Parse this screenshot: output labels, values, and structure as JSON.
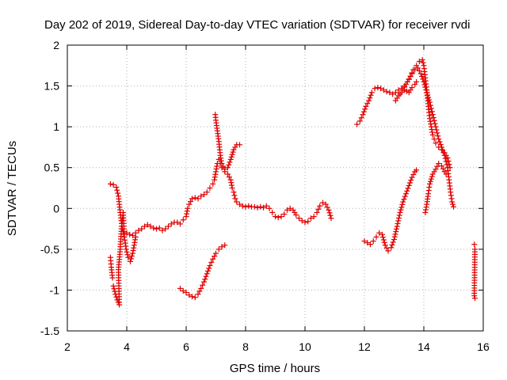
{
  "chart_data": {
    "type": "scatter",
    "title": "Day 202 of 2019, Sidereal Day-to-day VTEC variation (SDTVAR) for receiver rvdi",
    "xlabel": "GPS time / hours",
    "ylabel": "SDTVAR / TECUs",
    "xlim": [
      2,
      16
    ],
    "ylim": [
      -1.5,
      2
    ],
    "xticks": [
      "2",
      "4",
      "6",
      "8",
      "10",
      "12",
      "14",
      "16"
    ],
    "yticks": [
      "-1.5",
      "-1",
      "-0.5",
      "0",
      "0.5",
      "1",
      "1.5",
      "2"
    ],
    "grid": true,
    "marker": "+",
    "color": "#e00000",
    "series": [
      {
        "segments": [
          [
            [
              3.45,
              0.3
            ],
            [
              3.55,
              0.29
            ],
            [
              3.65,
              0.26
            ],
            [
              3.72,
              0.15
            ],
            [
              3.78,
              -0.05
            ],
            [
              3.85,
              -0.25
            ],
            [
              3.92,
              -0.35
            ],
            [
              4.0,
              -0.3
            ],
            [
              4.1,
              -0.32
            ],
            [
              4.2,
              -0.33
            ],
            [
              4.3,
              -0.3
            ],
            [
              4.4,
              -0.27
            ],
            [
              4.5,
              -0.25
            ],
            [
              4.6,
              -0.22
            ],
            [
              4.7,
              -0.2
            ],
            [
              4.8,
              -0.22
            ],
            [
              4.9,
              -0.24
            ],
            [
              5.0,
              -0.25
            ],
            [
              5.1,
              -0.24
            ],
            [
              5.2,
              -0.27
            ],
            [
              5.3,
              -0.25
            ],
            [
              5.4,
              -0.22
            ],
            [
              5.5,
              -0.19
            ],
            [
              5.6,
              -0.17
            ],
            [
              5.7,
              -0.17
            ],
            [
              5.8,
              -0.19
            ],
            [
              5.9,
              -0.14
            ],
            [
              6.0,
              -0.1
            ],
            [
              6.05,
              0.0
            ],
            [
              6.1,
              0.05
            ],
            [
              6.2,
              0.12
            ],
            [
              6.3,
              0.13
            ],
            [
              6.4,
              0.12
            ],
            [
              6.5,
              0.15
            ],
            [
              6.6,
              0.17
            ],
            [
              6.7,
              0.2
            ],
            [
              6.8,
              0.25
            ],
            [
              6.9,
              0.3
            ],
            [
              6.95,
              0.35
            ],
            [
              7.0,
              0.45
            ],
            [
              7.05,
              0.55
            ],
            [
              7.1,
              0.6
            ],
            [
              7.15,
              0.55
            ],
            [
              7.2,
              0.5
            ],
            [
              7.3,
              0.45
            ],
            [
              7.4,
              0.42
            ],
            [
              7.5,
              0.35
            ],
            [
              7.55,
              0.25
            ],
            [
              7.6,
              0.2
            ],
            [
              7.65,
              0.12
            ],
            [
              7.7,
              0.08
            ],
            [
              7.8,
              0.05
            ],
            [
              7.9,
              0.03
            ],
            [
              8.0,
              0.02
            ],
            [
              8.1,
              0.03
            ],
            [
              8.2,
              0.02
            ],
            [
              8.3,
              0.02
            ],
            [
              8.4,
              0.01
            ],
            [
              8.5,
              0.02
            ],
            [
              8.6,
              0.01
            ],
            [
              8.7,
              0.03
            ],
            [
              8.8,
              0.0
            ],
            [
              8.9,
              -0.05
            ],
            [
              9.0,
              -0.1
            ],
            [
              9.1,
              -0.11
            ],
            [
              9.2,
              -0.1
            ],
            [
              9.3,
              -0.07
            ],
            [
              9.4,
              -0.02
            ],
            [
              9.5,
              0.0
            ],
            [
              9.6,
              -0.02
            ],
            [
              9.7,
              -0.08
            ],
            [
              9.8,
              -0.12
            ],
            [
              9.9,
              -0.15
            ],
            [
              10.0,
              -0.17
            ],
            [
              10.1,
              -0.16
            ],
            [
              10.2,
              -0.12
            ],
            [
              10.3,
              -0.1
            ],
            [
              10.4,
              -0.05
            ],
            [
              10.5,
              0.03
            ],
            [
              10.6,
              0.07
            ],
            [
              10.7,
              0.05
            ],
            [
              10.8,
              -0.02
            ],
            [
              10.88,
              -0.12
            ]
          ],
          [
            [
              3.55,
              -0.95
            ],
            [
              3.62,
              -1.05
            ],
            [
              3.68,
              -1.12
            ],
            [
              3.75,
              -1.18
            ],
            [
              3.72,
              -0.75
            ],
            [
              3.78,
              -0.5
            ],
            [
              3.82,
              -0.25
            ],
            [
              3.88,
              -0.05
            ],
            [
              3.92,
              -0.35
            ],
            [
              3.98,
              -0.5
            ],
            [
              4.05,
              -0.6
            ],
            [
              4.12,
              -0.65
            ],
            [
              4.2,
              -0.55
            ],
            [
              4.25,
              -0.45
            ],
            [
              4.3,
              -0.35
            ]
          ],
          [
            [
              3.45,
              -0.6
            ],
            [
              3.48,
              -0.72
            ],
            [
              3.52,
              -0.85
            ]
          ],
          [
            [
              5.8,
              -0.98
            ],
            [
              5.9,
              -1.01
            ],
            [
              6.0,
              -1.03
            ],
            [
              6.1,
              -1.06
            ],
            [
              6.2,
              -1.08
            ],
            [
              6.3,
              -1.09
            ],
            [
              6.4,
              -1.05
            ],
            [
              6.5,
              -0.98
            ],
            [
              6.6,
              -0.9
            ],
            [
              6.7,
              -0.8
            ],
            [
              6.8,
              -0.7
            ],
            [
              6.9,
              -0.62
            ],
            [
              7.0,
              -0.55
            ],
            [
              7.1,
              -0.5
            ],
            [
              7.2,
              -0.47
            ],
            [
              7.3,
              -0.45
            ]
          ],
          [
            [
              6.98,
              1.15
            ],
            [
              7.0,
              1.08
            ],
            [
              7.05,
              0.95
            ],
            [
              7.1,
              0.82
            ],
            [
              7.15,
              0.65
            ],
            [
              7.2,
              0.55
            ],
            [
              7.3,
              0.48
            ],
            [
              7.4,
              0.5
            ],
            [
              7.5,
              0.6
            ],
            [
              7.6,
              0.72
            ],
            [
              7.7,
              0.78
            ],
            [
              7.8,
              0.78
            ]
          ],
          [
            [
              11.75,
              1.03
            ],
            [
              11.85,
              1.07
            ],
            [
              11.95,
              1.15
            ],
            [
              12.05,
              1.25
            ],
            [
              12.15,
              1.32
            ],
            [
              12.25,
              1.42
            ],
            [
              12.35,
              1.47
            ],
            [
              12.45,
              1.48
            ],
            [
              12.55,
              1.47
            ],
            [
              12.65,
              1.45
            ],
            [
              12.75,
              1.43
            ],
            [
              12.85,
              1.42
            ],
            [
              12.95,
              1.4
            ],
            [
              13.05,
              1.42
            ],
            [
              13.15,
              1.45
            ],
            [
              13.25,
              1.47
            ],
            [
              13.35,
              1.5
            ],
            [
              13.45,
              1.55
            ],
            [
              13.55,
              1.62
            ],
            [
              13.65,
              1.7
            ],
            [
              13.75,
              1.75
            ],
            [
              13.85,
              1.8
            ],
            [
              13.95,
              1.82
            ],
            [
              14.0,
              1.75
            ],
            [
              14.05,
              1.6
            ],
            [
              14.1,
              1.45
            ],
            [
              14.15,
              1.25
            ],
            [
              14.2,
              1.1
            ],
            [
              14.25,
              1.0
            ],
            [
              14.3,
              0.9
            ],
            [
              14.35,
              0.85
            ],
            [
              14.4,
              0.8
            ],
            [
              14.5,
              0.75
            ],
            [
              14.6,
              0.72
            ],
            [
              14.7,
              0.68
            ],
            [
              14.8,
              0.62
            ],
            [
              14.88,
              0.5
            ]
          ],
          [
            [
              13.2,
              1.4
            ],
            [
              13.3,
              1.45
            ],
            [
              13.4,
              1.52
            ],
            [
              13.5,
              1.58
            ],
            [
              13.6,
              1.65
            ],
            [
              13.7,
              1.7
            ],
            [
              13.8,
              1.72
            ],
            [
              13.9,
              1.65
            ],
            [
              14.0,
              1.55
            ],
            [
              14.1,
              1.42
            ],
            [
              14.2,
              1.3
            ],
            [
              14.3,
              1.15
            ],
            [
              14.4,
              1.0
            ],
            [
              14.5,
              0.85
            ],
            [
              14.6,
              0.75
            ],
            [
              14.7,
              0.65
            ],
            [
              14.8,
              0.5
            ],
            [
              14.85,
              0.35
            ],
            [
              14.9,
              0.2
            ],
            [
              14.95,
              0.08
            ],
            [
              15.0,
              0.02
            ]
          ],
          [
            [
              13.05,
              1.32
            ],
            [
              13.15,
              1.38
            ],
            [
              13.25,
              1.42
            ],
            [
              13.35,
              1.45
            ],
            [
              13.5,
              1.42
            ],
            [
              13.6,
              1.48
            ],
            [
              13.7,
              1.52
            ],
            [
              13.75,
              1.55
            ]
          ],
          [
            [
              12.0,
              -0.4
            ],
            [
              12.1,
              -0.42
            ],
            [
              12.2,
              -0.44
            ],
            [
              12.3,
              -0.4
            ],
            [
              12.4,
              -0.35
            ],
            [
              12.5,
              -0.3
            ],
            [
              12.6,
              -0.32
            ],
            [
              12.7,
              -0.45
            ],
            [
              12.8,
              -0.52
            ],
            [
              12.9,
              -0.48
            ],
            [
              13.0,
              -0.38
            ],
            [
              13.1,
              -0.22
            ],
            [
              13.2,
              -0.05
            ],
            [
              13.3,
              0.08
            ],
            [
              13.4,
              0.18
            ],
            [
              13.5,
              0.28
            ],
            [
              13.6,
              0.38
            ],
            [
              13.7,
              0.45
            ],
            [
              13.75,
              0.47
            ]
          ],
          [
            [
              14.05,
              -0.05
            ],
            [
              14.1,
              0.05
            ],
            [
              14.15,
              0.18
            ],
            [
              14.2,
              0.3
            ],
            [
              14.3,
              0.42
            ],
            [
              14.4,
              0.48
            ],
            [
              14.5,
              0.55
            ],
            [
              14.6,
              0.52
            ],
            [
              14.7,
              0.45
            ],
            [
              14.75,
              0.42
            ]
          ],
          [
            [
              15.7,
              -0.44
            ],
            [
              15.72,
              -0.5
            ],
            [
              15.7,
              -1.07
            ],
            [
              15.72,
              -1.1
            ]
          ]
        ]
      }
    ]
  }
}
